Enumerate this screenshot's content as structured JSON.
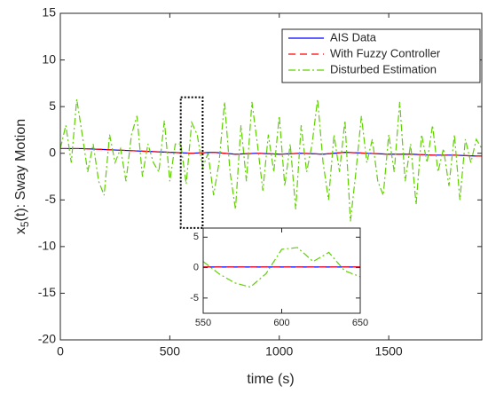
{
  "chart_data": {
    "type": "line",
    "xlabel": "time (s)",
    "ylabel": {
      "base": "x",
      "sub": "5",
      "rest": "(t): Sway Motion"
    },
    "xlim": [
      0,
      1925
    ],
    "ylim": [
      -20,
      15
    ],
    "xticks": [
      0,
      500,
      1000,
      1500
    ],
    "yticks": [
      -20,
      -15,
      -10,
      -5,
      0,
      5,
      10,
      15
    ],
    "grid": false,
    "legend": "top-right",
    "series": [
      {
        "name": "AIS Data",
        "color": "#0000ff",
        "dash": "solid",
        "x": [
          0,
          100,
          200,
          300,
          400,
          500,
          600,
          700,
          800,
          900,
          1000,
          1100,
          1200,
          1300,
          1400,
          1500,
          1600,
          1700,
          1800,
          1900,
          1925
        ],
        "values": [
          0.5,
          0.5,
          0.4,
          0.3,
          0.2,
          0.1,
          0.0,
          0.1,
          -0.1,
          0.0,
          -0.1,
          0.0,
          -0.1,
          0.1,
          0.0,
          -0.1,
          -0.1,
          -0.2,
          -0.2,
          -0.3,
          -0.3
        ]
      },
      {
        "name": "With Fuzzy Controller",
        "color": "#ff0000",
        "dash": "dashed",
        "x": [
          0,
          100,
          200,
          300,
          400,
          500,
          600,
          700,
          800,
          900,
          1000,
          1100,
          1200,
          1300,
          1400,
          1500,
          1600,
          1700,
          1800,
          1900,
          1925
        ],
        "values": [
          0.5,
          0.5,
          0.4,
          0.3,
          0.2,
          0.1,
          0.0,
          0.1,
          -0.1,
          0.0,
          -0.1,
          0.0,
          -0.1,
          0.1,
          0.0,
          -0.1,
          -0.1,
          -0.2,
          -0.2,
          -0.3,
          -0.3
        ]
      },
      {
        "name": "Disturbed Estimation",
        "color": "#5fd000",
        "dash": "dashdot",
        "x": [
          0,
          25,
          50,
          75,
          100,
          125,
          150,
          175,
          200,
          225,
          250,
          275,
          300,
          325,
          350,
          375,
          400,
          425,
          450,
          475,
          500,
          525,
          550,
          575,
          600,
          625,
          650,
          675,
          700,
          725,
          750,
          775,
          800,
          825,
          850,
          875,
          900,
          925,
          950,
          975,
          1000,
          1025,
          1050,
          1075,
          1100,
          1125,
          1150,
          1175,
          1200,
          1225,
          1250,
          1275,
          1300,
          1325,
          1350,
          1375,
          1400,
          1425,
          1450,
          1475,
          1500,
          1525,
          1550,
          1575,
          1600,
          1625,
          1650,
          1675,
          1700,
          1725,
          1750,
          1775,
          1800,
          1825,
          1850,
          1875,
          1900,
          1925
        ],
        "values": [
          0.5,
          3,
          -1,
          5.8,
          2,
          -2,
          1,
          -3,
          -4.5,
          2,
          -1,
          0.5,
          -3,
          2,
          4,
          -2.5,
          1,
          -1,
          -2,
          3.5,
          -3,
          1,
          1,
          -3.3,
          3.3,
          2,
          -1.5,
          0,
          -4.5,
          -1,
          5.5,
          -2,
          -6,
          3,
          -3,
          5.5,
          1,
          -4,
          2,
          -2,
          4,
          -3.5,
          1,
          -6,
          3,
          -2,
          1,
          5.8,
          -1,
          -5,
          2,
          -2,
          3.5,
          -7.3,
          -2,
          4,
          -1,
          1.5,
          -3,
          -4.5,
          2,
          -2,
          5.5,
          -3,
          1,
          -5.5,
          2,
          -1,
          3,
          -2,
          0.5,
          -3.5,
          2,
          -5,
          1.5,
          -1,
          1.5,
          0.5
        ]
      }
    ],
    "zoom_box": {
      "x": [
        550,
        650
      ],
      "y": [
        -8,
        6
      ]
    },
    "inset": {
      "xlim": [
        550,
        650
      ],
      "ylim": [
        -7.5,
        6.5
      ],
      "xticks": [
        550,
        600,
        650
      ],
      "yticks": [
        -5,
        0,
        5
      ],
      "series": [
        {
          "color": "#0000ff",
          "dash": "solid",
          "x": [
            550,
            650
          ],
          "values": [
            0.1,
            0.1
          ]
        },
        {
          "color": "#ff0000",
          "dash": "dashed",
          "x": [
            550,
            650
          ],
          "values": [
            0.1,
            0.1
          ]
        },
        {
          "color": "#5fd000",
          "dash": "dashdot",
          "x": [
            550,
            560,
            570,
            580,
            590,
            600,
            610,
            620,
            630,
            640,
            650
          ],
          "values": [
            1,
            -1,
            -2.5,
            -3.2,
            -1,
            3,
            3.3,
            1,
            2.5,
            -0.5,
            -1.5
          ]
        }
      ]
    }
  }
}
